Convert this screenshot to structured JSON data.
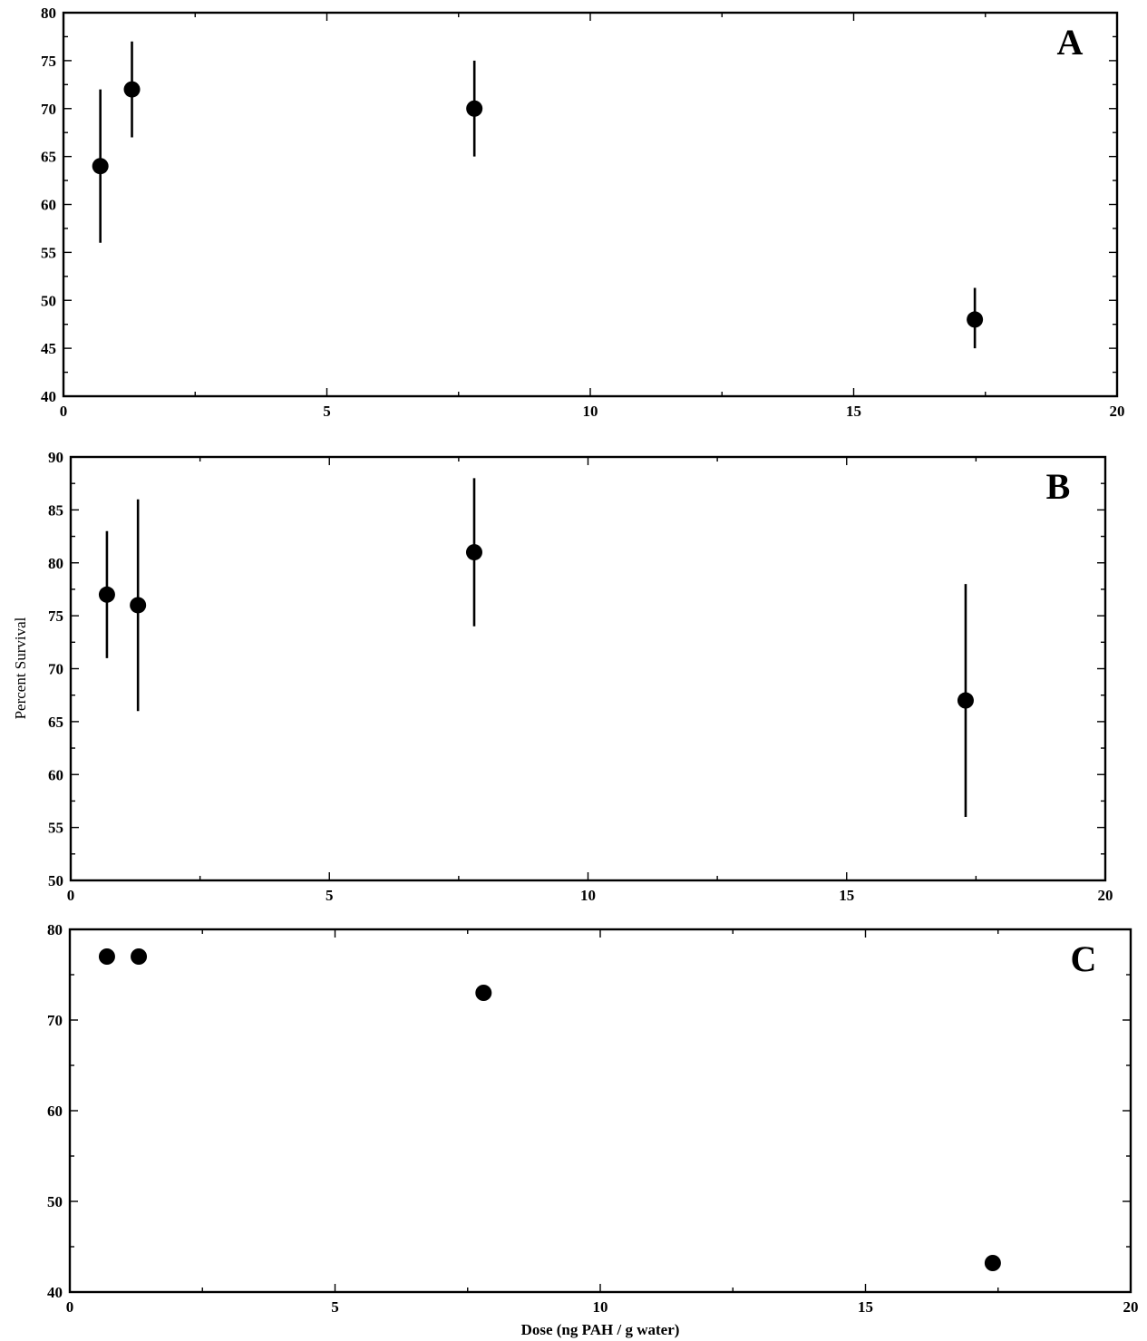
{
  "ylabel": "Percent Survival",
  "xlabel": "Dose (ng PAH / g water)",
  "chart_data": [
    {
      "type": "scatter",
      "panel_label": "A",
      "xlim": [
        0,
        20
      ],
      "ylim": [
        40,
        80
      ],
      "x_ticks": [
        0,
        5,
        10,
        15,
        20
      ],
      "y_ticks": [
        40,
        45,
        50,
        55,
        60,
        65,
        70,
        75,
        80
      ],
      "points": [
        {
          "x": 0.7,
          "y": 64,
          "err_low": 56,
          "err_high": 72
        },
        {
          "x": 1.3,
          "y": 72,
          "err_low": 67,
          "err_high": 77
        },
        {
          "x": 7.8,
          "y": 70,
          "err_low": 65,
          "err_high": 75
        },
        {
          "x": 17.3,
          "y": 48,
          "err_low": 45,
          "err_high": 51.3
        }
      ]
    },
    {
      "type": "scatter",
      "panel_label": "B",
      "xlim": [
        0,
        20
      ],
      "ylim": [
        50,
        90
      ],
      "x_ticks": [
        0,
        5,
        10,
        15,
        20
      ],
      "y_ticks": [
        50,
        55,
        60,
        65,
        70,
        75,
        80,
        85,
        90
      ],
      "points": [
        {
          "x": 0.7,
          "y": 77,
          "err_low": 71,
          "err_high": 83
        },
        {
          "x": 1.3,
          "y": 76,
          "err_low": 66,
          "err_high": 86
        },
        {
          "x": 7.8,
          "y": 81,
          "err_low": 74,
          "err_high": 88
        },
        {
          "x": 17.3,
          "y": 67,
          "err_low": 56,
          "err_high": 78
        }
      ]
    },
    {
      "type": "scatter",
      "panel_label": "C",
      "xlim": [
        0,
        20
      ],
      "ylim": [
        40,
        80
      ],
      "x_ticks": [
        0,
        5,
        10,
        15,
        20
      ],
      "y_ticks": [
        40,
        50,
        60,
        70,
        80
      ],
      "points": [
        {
          "x": 0.7,
          "y": 77
        },
        {
          "x": 1.3,
          "y": 77
        },
        {
          "x": 7.8,
          "y": 73
        },
        {
          "x": 17.4,
          "y": 43.2
        }
      ]
    }
  ]
}
